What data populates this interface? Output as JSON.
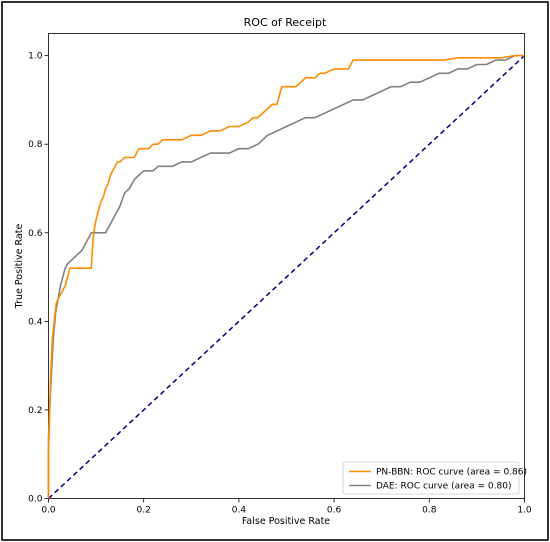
{
  "chart_data": {
    "type": "line",
    "title": "ROC of Receipt",
    "xlabel": "False Positive Rate",
    "ylabel": "True Positive Rate",
    "xlim": [
      0.0,
      1.0
    ],
    "ylim": [
      0.0,
      1.05
    ],
    "xticks": [
      "0.0",
      "0.2",
      "0.4",
      "0.6",
      "0.8",
      "1.0"
    ],
    "yticks": [
      "0.0",
      "0.2",
      "0.4",
      "0.6",
      "0.8",
      "1.0"
    ],
    "grid": false,
    "legend_position": "lower-right",
    "series": [
      {
        "name": "PN-BBN: ROC curve (area = 0.86)",
        "color": "#ff8c00",
        "x": [
          0.0,
          0.0,
          0.004,
          0.008,
          0.012,
          0.016,
          0.02,
          0.025,
          0.03,
          0.035,
          0.04,
          0.045,
          0.05,
          0.06,
          0.07,
          0.08,
          0.09,
          0.092,
          0.095,
          0.1,
          0.105,
          0.11,
          0.115,
          0.12,
          0.125,
          0.13,
          0.135,
          0.14,
          0.145,
          0.15,
          0.16,
          0.17,
          0.18,
          0.19,
          0.2,
          0.21,
          0.22,
          0.23,
          0.24,
          0.25,
          0.26,
          0.27,
          0.28,
          0.3,
          0.32,
          0.34,
          0.36,
          0.38,
          0.4,
          0.42,
          0.43,
          0.44,
          0.46,
          0.47,
          0.48,
          0.49,
          0.5,
          0.52,
          0.54,
          0.56,
          0.57,
          0.58,
          0.6,
          0.62,
          0.63,
          0.64,
          0.65,
          0.67,
          0.7,
          0.73,
          0.76,
          0.79,
          0.8,
          0.83,
          0.86,
          0.89,
          0.92,
          0.95,
          0.98,
          1.0
        ],
        "y": [
          0.0,
          0.1,
          0.26,
          0.36,
          0.4,
          0.44,
          0.45,
          0.46,
          0.47,
          0.48,
          0.5,
          0.52,
          0.52,
          0.52,
          0.52,
          0.52,
          0.52,
          0.56,
          0.6,
          0.63,
          0.65,
          0.67,
          0.68,
          0.7,
          0.71,
          0.73,
          0.74,
          0.75,
          0.76,
          0.76,
          0.77,
          0.77,
          0.77,
          0.79,
          0.79,
          0.79,
          0.8,
          0.8,
          0.81,
          0.81,
          0.81,
          0.81,
          0.81,
          0.82,
          0.82,
          0.83,
          0.83,
          0.84,
          0.84,
          0.85,
          0.86,
          0.86,
          0.88,
          0.89,
          0.89,
          0.93,
          0.93,
          0.93,
          0.95,
          0.95,
          0.96,
          0.96,
          0.97,
          0.97,
          0.97,
          0.99,
          0.99,
          0.99,
          0.99,
          0.99,
          0.99,
          0.99,
          0.99,
          0.99,
          0.995,
          0.995,
          0.995,
          0.995,
          1.0,
          1.0
        ]
      },
      {
        "name": "DAE: ROC curve (area = 0.80)",
        "color": "#808080",
        "x": [
          0.0,
          0.0,
          0.005,
          0.01,
          0.015,
          0.02,
          0.025,
          0.03,
          0.035,
          0.04,
          0.05,
          0.06,
          0.07,
          0.08,
          0.09,
          0.1,
          0.11,
          0.12,
          0.13,
          0.14,
          0.15,
          0.16,
          0.17,
          0.18,
          0.19,
          0.2,
          0.21,
          0.22,
          0.23,
          0.24,
          0.26,
          0.28,
          0.3,
          0.32,
          0.34,
          0.36,
          0.38,
          0.4,
          0.42,
          0.44,
          0.46,
          0.48,
          0.5,
          0.52,
          0.54,
          0.56,
          0.58,
          0.6,
          0.62,
          0.64,
          0.66,
          0.68,
          0.7,
          0.72,
          0.74,
          0.76,
          0.78,
          0.8,
          0.82,
          0.84,
          0.86,
          0.88,
          0.9,
          0.92,
          0.94,
          0.96,
          0.98,
          1.0
        ],
        "y": [
          0.0,
          0.14,
          0.26,
          0.36,
          0.42,
          0.45,
          0.48,
          0.5,
          0.52,
          0.53,
          0.54,
          0.55,
          0.56,
          0.58,
          0.6,
          0.6,
          0.6,
          0.6,
          0.62,
          0.64,
          0.66,
          0.69,
          0.7,
          0.72,
          0.73,
          0.74,
          0.74,
          0.74,
          0.75,
          0.75,
          0.75,
          0.76,
          0.76,
          0.77,
          0.78,
          0.78,
          0.78,
          0.79,
          0.79,
          0.8,
          0.82,
          0.83,
          0.84,
          0.85,
          0.86,
          0.86,
          0.87,
          0.88,
          0.89,
          0.9,
          0.9,
          0.91,
          0.92,
          0.93,
          0.93,
          0.94,
          0.94,
          0.95,
          0.96,
          0.96,
          0.97,
          0.97,
          0.98,
          0.98,
          0.99,
          0.99,
          1.0,
          1.0
        ]
      },
      {
        "color": "#000080",
        "x": [
          0.0,
          1.0
        ],
        "y": [
          0.0,
          1.0
        ],
        "dashed": true
      }
    ]
  }
}
